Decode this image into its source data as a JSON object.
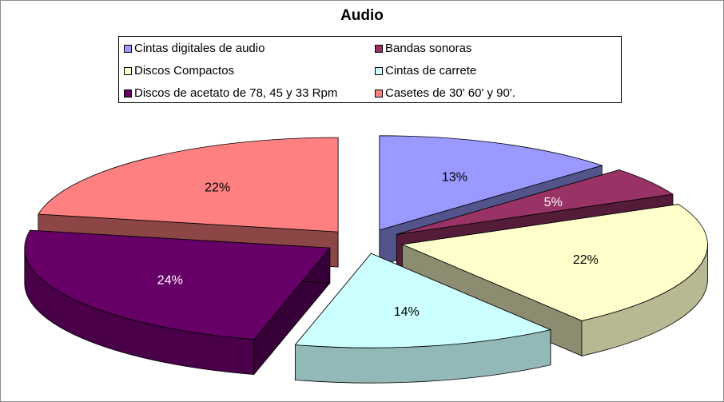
{
  "chart_data": {
    "type": "pie",
    "title": "Audio",
    "categories": [
      "Cintas digitales de audio",
      "Bandas sonoras",
      "Discos Compactos",
      "Cintas de carrete",
      "Discos de acetato de 78, 45 y 33 Rpm",
      "Casetes de 30' 60' y 90'."
    ],
    "values": [
      13,
      5,
      22,
      14,
      24,
      22
    ],
    "data_labels": [
      "13%",
      "5%",
      "22%",
      "14%",
      "24%",
      "22%"
    ],
    "colors": [
      "#9999ff",
      "#993366",
      "#ffffcc",
      "#ccffff",
      "#660066",
      "#ff8080"
    ],
    "label_colors": [
      "#000000",
      "#ffffff",
      "#000000",
      "#000000",
      "#ffffff",
      "#000000"
    ],
    "legend_position": "top",
    "style": "exploded-3d"
  }
}
